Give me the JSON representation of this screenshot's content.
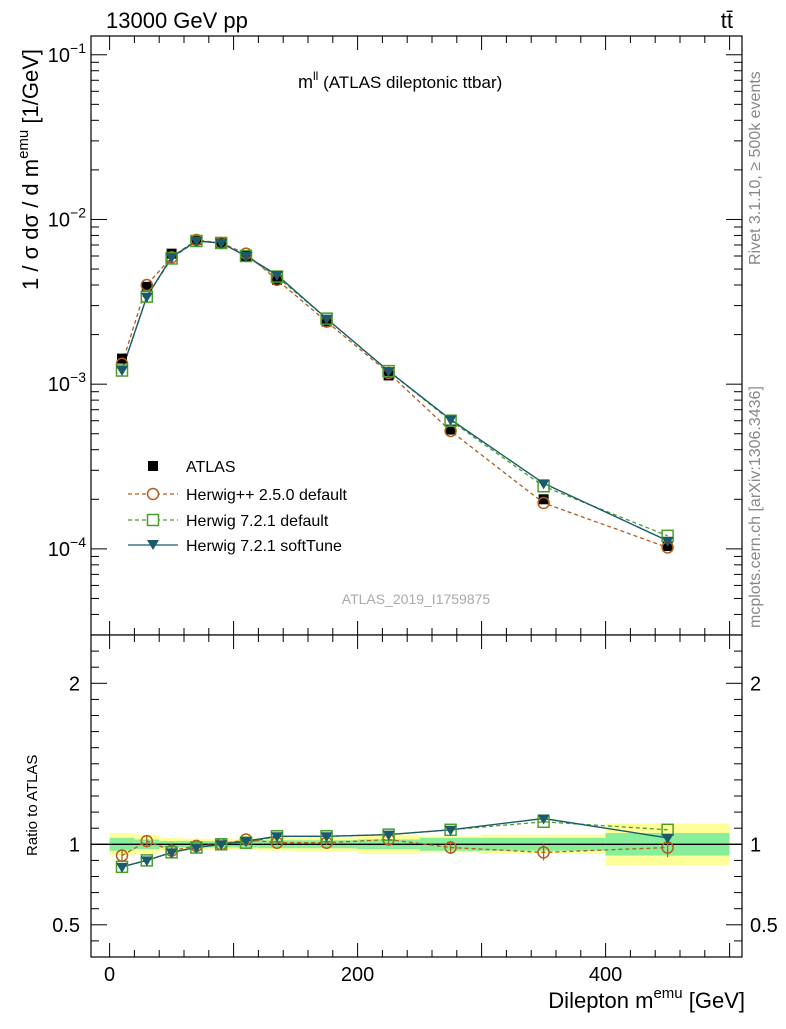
{
  "header": {
    "energy_label": "13000 GeV pp",
    "process_label": "tt̄"
  },
  "side_text": {
    "rivet": "Rivet 3.1.10, ≥ 500k events",
    "mcplots": "mcplots.cern.ch [arXiv:1306.3436]"
  },
  "chart_data": [
    {
      "type": "scatter",
      "panel": "main",
      "title_main": "m",
      "title_sup": "ll",
      "title_rest": " (ATLAS dileptonic ttbar)",
      "watermark": "ATLAS_2019_I1759875",
      "ylabel_main": "1 / σ  dσ / d m",
      "ylabel_sup": "emu",
      "ylabel_unit": " [1/GeV]",
      "yscale": "log",
      "ylim": [
        3e-05,
        0.13
      ],
      "xlim": [
        -15,
        510
      ],
      "ytick_labels": [
        {
          "value": 0.1,
          "base": "10",
          "exp": "−1"
        },
        {
          "value": 0.01,
          "base": "10",
          "exp": "−2"
        },
        {
          "value": 0.001,
          "base": "10",
          "exp": "−3"
        },
        {
          "value": 0.0001,
          "base": "10",
          "exp": "−4"
        }
      ],
      "x": [
        10,
        30,
        50,
        70,
        90,
        110,
        135,
        175,
        225,
        275,
        350,
        450
      ],
      "series": [
        {
          "name": "ATLAS",
          "style": "data",
          "color": "#000000",
          "values": [
            0.00143,
            0.0039,
            0.0062,
            0.0075,
            0.0072,
            0.006,
            0.0043,
            0.0024,
            0.00113,
            0.00053,
            0.0002,
            0.000104
          ]
        },
        {
          "name": "Herwig++ 2.5.0 default",
          "style": "open-circle-dashed",
          "color": "#b25e1f",
          "values": [
            0.00133,
            0.004,
            0.0059,
            0.0075,
            0.0072,
            0.0062,
            0.0043,
            0.0024,
            0.00117,
            0.00052,
            0.00019,
            0.000102
          ]
        },
        {
          "name": "Herwig 7.2.1 default",
          "style": "open-square-dashed",
          "color": "#4a9e2a",
          "values": [
            0.00121,
            0.0034,
            0.0058,
            0.0074,
            0.0072,
            0.006,
            0.0045,
            0.0025,
            0.0012,
            0.0006,
            0.00024,
            0.00012
          ]
        },
        {
          "name": "Herwig 7.2.1 softTune",
          "style": "filled-triangle-solid",
          "color": "#1a5a6a",
          "values": [
            0.00122,
            0.0034,
            0.0059,
            0.0074,
            0.0072,
            0.006,
            0.0046,
            0.0025,
            0.0012,
            0.00061,
            0.00025,
            0.000112
          ]
        }
      ]
    },
    {
      "type": "scatter",
      "panel": "ratio",
      "ylabel": "Ratio to ATLAS",
      "xlabel_main": "Dilepton m",
      "xlabel_sup": "emu",
      "xlabel_unit": " [GeV]",
      "ylim": [
        0.3,
        2.3
      ],
      "xlim": [
        -15,
        510
      ],
      "ytick_labels": [
        {
          "value": 2,
          "label": "2"
        },
        {
          "value": 1,
          "label": "1"
        },
        {
          "value": 0.5,
          "label": "0.5"
        }
      ],
      "xtick_labels": [
        {
          "value": 0,
          "label": "0"
        },
        {
          "value": 200,
          "label": "200"
        },
        {
          "value": 400,
          "label": "400"
        }
      ],
      "x": [
        10,
        30,
        50,
        70,
        90,
        110,
        135,
        175,
        225,
        275,
        350,
        450
      ],
      "bins": [
        [
          0,
          20
        ],
        [
          20,
          40
        ],
        [
          40,
          60
        ],
        [
          60,
          80
        ],
        [
          80,
          100
        ],
        [
          100,
          120
        ],
        [
          120,
          150
        ],
        [
          150,
          200
        ],
        [
          200,
          250
        ],
        [
          250,
          300
        ],
        [
          300,
          400
        ],
        [
          400,
          500
        ]
      ],
      "band_green": [
        0.04,
        0.03,
        0.02,
        0.02,
        0.02,
        0.02,
        0.025,
        0.025,
        0.03,
        0.04,
        0.04,
        0.07
      ],
      "band_yellow": [
        0.07,
        0.06,
        0.04,
        0.035,
        0.035,
        0.035,
        0.04,
        0.045,
        0.06,
        0.05,
        0.06,
        0.13
      ],
      "series": [
        {
          "name": "Herwig++ 2.5.0 default",
          "color": "#b25e1f",
          "values": [
            0.93,
            1.02,
            0.96,
            0.99,
            1.0,
            1.03,
            1.01,
            1.01,
            1.03,
            0.98,
            0.95,
            0.98
          ],
          "errors": [
            0.04,
            0.03,
            0.02,
            0.015,
            0.015,
            0.015,
            0.015,
            0.015,
            0.03,
            0.04,
            0.05,
            0.06
          ]
        },
        {
          "name": "Herwig 7.2.1 default",
          "color": "#4a9e2a",
          "values": [
            0.86,
            0.9,
            0.95,
            0.98,
            1.0,
            1.01,
            1.05,
            1.05,
            1.06,
            1.09,
            1.14,
            1.09
          ],
          "errors": [
            0.02,
            0.015,
            0.01,
            0.01,
            0.01,
            0.01,
            0.01,
            0.01,
            0.01,
            0.01,
            0.01,
            0.02
          ]
        },
        {
          "name": "Herwig 7.2.1 softTune",
          "color": "#1a5a6a",
          "values": [
            0.86,
            0.9,
            0.95,
            0.98,
            1.0,
            1.02,
            1.05,
            1.05,
            1.06,
            1.09,
            1.16,
            1.04
          ],
          "errors": [
            0.02,
            0.015,
            0.01,
            0.01,
            0.01,
            0.01,
            0.01,
            0.01,
            0.01,
            0.01,
            0.01,
            0.02
          ]
        }
      ]
    }
  ]
}
